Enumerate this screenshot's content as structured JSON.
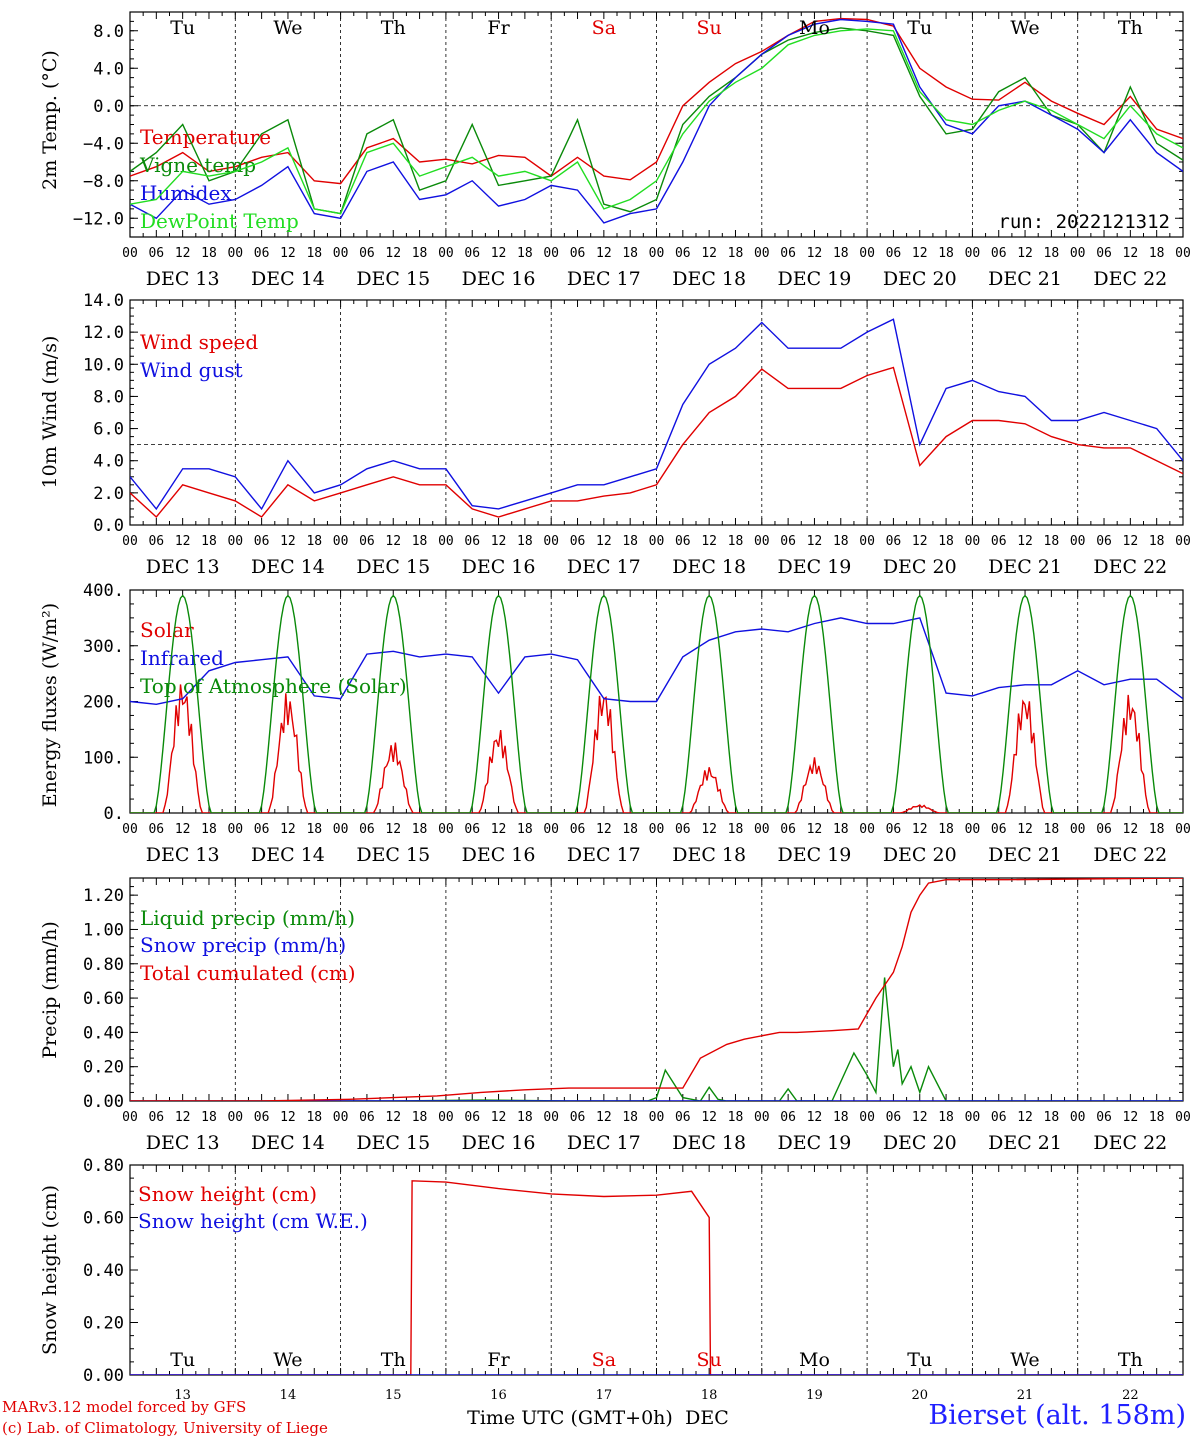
{
  "chart_data": [
    {
      "type": "line",
      "ylabel": "2m Temp. (°C)",
      "ylim": [
        -14,
        10
      ],
      "yticks": [
        -12.0,
        -8.0,
        -4.0,
        0.0,
        4.0,
        8.0
      ],
      "ytick_labels": [
        "−12.0",
        "−8.0",
        "−4.0",
        "0.0",
        "4.0",
        "8.0"
      ],
      "hline": 0,
      "annotation": "run: 2022121312",
      "x_unit": "hours since DEC 13 00 UTC",
      "series": [
        {
          "name": "Temperature",
          "color": "#e00000",
          "x": [
            0,
            6,
            12,
            18,
            24,
            30,
            36,
            42,
            48,
            54,
            60,
            66,
            72,
            78,
            84,
            90,
            96,
            102,
            108,
            114,
            120,
            126,
            132,
            138,
            144,
            150,
            156,
            162,
            168,
            174,
            180,
            186,
            192,
            198,
            204,
            210,
            216,
            222,
            228,
            234,
            240
          ],
          "y": [
            -7.5,
            -6.5,
            -5.0,
            -7.0,
            -6.5,
            -5.5,
            -5.0,
            -8.0,
            -8.3,
            -4.5,
            -3.5,
            -6.0,
            -5.7,
            -6.2,
            -5.3,
            -5.5,
            -7.5,
            -5.5,
            -7.5,
            -7.9,
            -6.0,
            0.0,
            2.5,
            4.5,
            5.8,
            7.5,
            9.0,
            9.3,
            9.2,
            8.5,
            4.0,
            2.0,
            0.7,
            0.6,
            2.5,
            0.5,
            -0.8,
            -2.0,
            1.0,
            -2.5,
            -3.5
          ]
        },
        {
          "name": "Vigne temp",
          "color": "#0a8a0a",
          "x": [
            0,
            6,
            12,
            18,
            24,
            30,
            36,
            42,
            48,
            54,
            60,
            66,
            72,
            78,
            84,
            90,
            96,
            102,
            108,
            114,
            120,
            126,
            132,
            138,
            144,
            150,
            156,
            162,
            168,
            174,
            180,
            186,
            192,
            198,
            204,
            210,
            216,
            222,
            228,
            234,
            240
          ],
          "y": [
            -7.0,
            -5.0,
            -2.0,
            -8.0,
            -7.0,
            -3.0,
            -1.5,
            -11.0,
            -11.5,
            -3.0,
            -1.5,
            -9.0,
            -8.0,
            -2.0,
            -8.5,
            -8.0,
            -7.5,
            -1.5,
            -10.5,
            -11.3,
            -10.0,
            -2.0,
            1.0,
            3.0,
            5.5,
            7.0,
            7.8,
            8.3,
            8.0,
            7.5,
            1.0,
            -3.0,
            -2.5,
            1.5,
            3.0,
            -1.0,
            -2.0,
            -5.0,
            2.0,
            -4.0,
            -5.8
          ]
        },
        {
          "name": "Humidex",
          "color": "#1010e0",
          "x": [
            0,
            6,
            12,
            18,
            24,
            30,
            36,
            42,
            48,
            54,
            60,
            66,
            72,
            78,
            84,
            90,
            96,
            102,
            108,
            114,
            120,
            126,
            132,
            138,
            144,
            150,
            156,
            162,
            168,
            174,
            180,
            186,
            192,
            198,
            204,
            210,
            216,
            222,
            228,
            234,
            240
          ],
          "y": [
            -10.5,
            -12.0,
            -9.0,
            -10.5,
            -10.0,
            -8.5,
            -6.5,
            -11.5,
            -12.0,
            -7.0,
            -6.0,
            -10.0,
            -9.5,
            -8.0,
            -10.7,
            -10.0,
            -8.5,
            -9.0,
            -12.5,
            -11.5,
            -11.0,
            -6.0,
            0.0,
            3.0,
            5.5,
            7.5,
            8.7,
            9.2,
            9.0,
            8.7,
            2.0,
            -2.0,
            -3.0,
            0.0,
            0.5,
            -1.0,
            -2.5,
            -5.0,
            -1.5,
            -5.0,
            -7.0
          ]
        },
        {
          "name": "DewPoint Temp",
          "color": "#22dd22",
          "x": [
            0,
            6,
            12,
            18,
            24,
            30,
            36,
            42,
            48,
            54,
            60,
            66,
            72,
            78,
            84,
            90,
            96,
            102,
            108,
            114,
            120,
            126,
            132,
            138,
            144,
            150,
            156,
            162,
            168,
            174,
            180,
            186,
            192,
            198,
            204,
            210,
            216,
            222,
            228,
            234,
            240
          ],
          "y": [
            -10.5,
            -10.0,
            -7.0,
            -7.5,
            -7.0,
            -6.0,
            -4.5,
            -11.0,
            -11.5,
            -5.0,
            -4.0,
            -7.5,
            -6.5,
            -5.5,
            -7.5,
            -7.0,
            -8.0,
            -6.0,
            -11.0,
            -10.0,
            -8.0,
            -3.0,
            0.5,
            2.5,
            4.0,
            6.5,
            7.5,
            8.0,
            8.2,
            8.0,
            1.5,
            -1.5,
            -2.0,
            -0.5,
            0.5,
            -0.5,
            -2.0,
            -3.5,
            0.0,
            -3.0,
            -4.5
          ]
        }
      ]
    },
    {
      "type": "line",
      "ylabel": "10m Wind (m/s)",
      "ylim": [
        0,
        14
      ],
      "yticks": [
        0.0,
        2.0,
        4.0,
        6.0,
        8.0,
        10.0,
        12.0,
        14.0
      ],
      "ytick_labels": [
        "0.0",
        "2.0",
        "4.0",
        "6.0",
        "8.0",
        "10.0",
        "12.0",
        "14.0"
      ],
      "hline": 5,
      "x_unit": "hours since DEC 13 00 UTC",
      "series": [
        {
          "name": "Wind speed",
          "color": "#e00000",
          "x": [
            0,
            6,
            12,
            18,
            24,
            30,
            36,
            42,
            48,
            54,
            60,
            66,
            72,
            78,
            84,
            90,
            96,
            102,
            108,
            114,
            120,
            126,
            132,
            138,
            144,
            150,
            156,
            162,
            168,
            174,
            180,
            186,
            192,
            198,
            204,
            210,
            216,
            222,
            228,
            234,
            240
          ],
          "y": [
            2.0,
            0.5,
            2.5,
            2.0,
            1.5,
            0.5,
            2.5,
            1.5,
            2.0,
            2.5,
            3.0,
            2.5,
            2.5,
            1.0,
            0.5,
            1.0,
            1.5,
            1.5,
            1.8,
            2.0,
            2.5,
            5.0,
            7.0,
            8.0,
            9.7,
            8.5,
            8.5,
            8.5,
            9.3,
            9.8,
            3.7,
            5.5,
            6.5,
            6.5,
            6.3,
            5.5,
            5.0,
            4.8,
            4.8,
            4.0,
            3.2
          ]
        },
        {
          "name": "Wind gust",
          "color": "#1010e0",
          "x": [
            0,
            6,
            12,
            18,
            24,
            30,
            36,
            42,
            48,
            54,
            60,
            66,
            72,
            78,
            84,
            90,
            96,
            102,
            108,
            114,
            120,
            126,
            132,
            138,
            144,
            150,
            156,
            162,
            168,
            174,
            180,
            186,
            192,
            198,
            204,
            210,
            216,
            222,
            228,
            234,
            240
          ],
          "y": [
            3.0,
            1.0,
            3.5,
            3.5,
            3.0,
            1.0,
            4.0,
            2.0,
            2.5,
            3.5,
            4.0,
            3.5,
            3.5,
            1.2,
            1.0,
            1.5,
            2.0,
            2.5,
            2.5,
            3.0,
            3.5,
            7.5,
            10.0,
            11.0,
            12.6,
            11.0,
            11.0,
            11.0,
            12.0,
            12.8,
            5.0,
            8.5,
            9.0,
            8.3,
            8.0,
            6.5,
            6.5,
            7.0,
            6.5,
            6.0,
            4.0
          ]
        }
      ]
    },
    {
      "type": "line",
      "ylabel": "Energy fluxes (W/m²)",
      "ylim": [
        0,
        400
      ],
      "yticks": [
        0,
        100,
        200,
        300,
        400
      ],
      "ytick_labels": [
        "0.",
        "100.",
        "200.",
        "300.",
        "400."
      ],
      "x_unit": "hours since DEC 13 00 UTC",
      "series": [
        {
          "name": "Solar",
          "color": "#e00000",
          "daily_noon_peaks": [
            245,
            220,
            130,
            155,
            235,
            85,
            100,
            15,
            225,
            220
          ]
        },
        {
          "name": "Infrared",
          "color": "#1010e0",
          "x": [
            0,
            6,
            12,
            18,
            24,
            30,
            36,
            42,
            48,
            54,
            60,
            66,
            72,
            78,
            84,
            90,
            96,
            102,
            108,
            114,
            120,
            126,
            132,
            138,
            144,
            150,
            156,
            162,
            168,
            174,
            180,
            186,
            192,
            198,
            204,
            210,
            216,
            222,
            228,
            234,
            240
          ],
          "y": [
            200,
            195,
            205,
            255,
            270,
            275,
            280,
            210,
            205,
            285,
            290,
            280,
            285,
            280,
            215,
            280,
            285,
            275,
            205,
            200,
            200,
            280,
            310,
            325,
            330,
            325,
            340,
            350,
            340,
            340,
            350,
            215,
            210,
            225,
            230,
            230,
            255,
            230,
            240,
            240,
            205
          ]
        },
        {
          "name": "Top of Atmosphere (Solar)",
          "color": "#0a8a0a",
          "daily_noon_peaks": [
            390,
            390,
            390,
            390,
            390,
            390,
            390,
            390,
            390,
            390
          ]
        }
      ]
    },
    {
      "type": "line",
      "ylabel": "Precip (mm/h)",
      "ylim": [
        0,
        1.3
      ],
      "yticks": [
        0.0,
        0.2,
        0.4,
        0.6,
        0.8,
        1.0,
        1.2
      ],
      "ytick_labels": [
        "0.00",
        "0.20",
        "0.40",
        "0.60",
        "0.80",
        "1.00",
        "1.20"
      ],
      "x_unit": "hours since DEC 13 00 UTC",
      "series": [
        {
          "name": "Liquid precip (mm/h)",
          "color": "#0a8a0a",
          "x": [
            0,
            40,
            60,
            80,
            100,
            110,
            118,
            120,
            122,
            126,
            130,
            132,
            134,
            136,
            148,
            150,
            152,
            160,
            165,
            168,
            170,
            172,
            174,
            175,
            176,
            178,
            180,
            182,
            186,
            190,
            240
          ],
          "y": [
            0,
            0,
            0,
            0.005,
            0,
            0,
            0,
            0.02,
            0.18,
            0.02,
            0,
            0.08,
            0.01,
            0,
            0,
            0.07,
            0,
            0,
            0.28,
            0.15,
            0.05,
            0.72,
            0.2,
            0.3,
            0.1,
            0.2,
            0.05,
            0.2,
            0,
            0,
            0
          ]
        },
        {
          "name": "Snow precip (mm/h)",
          "color": "#1010e0",
          "x": [
            0,
            240
          ],
          "y": [
            0,
            0
          ]
        },
        {
          "name": "Total cumulated (cm)",
          "color": "#e00000",
          "x": [
            0,
            30,
            50,
            60,
            70,
            80,
            90,
            100,
            110,
            120,
            126,
            130,
            136,
            140,
            148,
            152,
            160,
            166,
            170,
            174,
            176,
            178,
            180,
            182,
            186,
            190,
            200,
            240
          ],
          "y": [
            0,
            0,
            0.01,
            0.02,
            0.03,
            0.05,
            0.065,
            0.075,
            0.075,
            0.075,
            0.075,
            0.25,
            0.33,
            0.36,
            0.4,
            0.4,
            0.41,
            0.42,
            0.6,
            0.75,
            0.9,
            1.1,
            1.2,
            1.27,
            1.29,
            1.29,
            1.29,
            1.3
          ]
        }
      ]
    },
    {
      "type": "line",
      "ylabel": "Snow height (cm)",
      "ylim": [
        0,
        0.8
      ],
      "yticks": [
        0.0,
        0.2,
        0.4,
        0.6,
        0.8
      ],
      "ytick_labels": [
        "0.00",
        "0.20",
        "0.40",
        "0.60",
        "0.80"
      ],
      "x_unit": "hours since DEC 13 00 UTC",
      "series": [
        {
          "name": "Snow height (cm)",
          "color": "#e00000",
          "x": [
            0,
            64,
            64.3,
            72,
            84,
            96,
            108,
            120,
            128,
            132,
            132.3,
            240
          ],
          "y": [
            0,
            0,
            0.74,
            0.735,
            0.71,
            0.69,
            0.68,
            0.685,
            0.7,
            0.6,
            0,
            0
          ]
        },
        {
          "name": "Snow height (cm W.E.)",
          "color": "#1010e0",
          "x": [
            0,
            240
          ],
          "y": [
            0,
            0
          ]
        }
      ]
    }
  ],
  "weekdays": [
    {
      "label": "Tu",
      "color": "#000000"
    },
    {
      "label": "We",
      "color": "#000000"
    },
    {
      "label": "Th",
      "color": "#000000"
    },
    {
      "label": "Fr",
      "color": "#000000"
    },
    {
      "label": "Sa",
      "color": "#e00000"
    },
    {
      "label": "Su",
      "color": "#e00000"
    },
    {
      "label": "Mo",
      "color": "#000000"
    },
    {
      "label": "Tu",
      "color": "#000000"
    },
    {
      "label": "We",
      "color": "#000000"
    },
    {
      "label": "Th",
      "color": "#000000"
    }
  ],
  "date_labels": [
    "DEC 13",
    "DEC 14",
    "DEC 15",
    "DEC 16",
    "DEC 17",
    "DEC 18",
    "DEC 19",
    "DEC 20",
    "DEC 21",
    "DEC 22"
  ],
  "hour_labels": [
    "00",
    "06",
    "12",
    "18"
  ],
  "last_hour_label": "00",
  "bottom_day_numbers": [
    "13",
    "14",
    "15",
    "16",
    "17",
    "18",
    "19",
    "20",
    "21",
    "22"
  ],
  "xlabel": "Time UTC (GMT+0h)",
  "xlabel_month": "DEC",
  "credit_line1": "MARv3.12 model forced by GFS",
  "credit_line2": "(c) Lab. of Climatology, University of Liege",
  "station": "Bierset (alt. 158m)"
}
